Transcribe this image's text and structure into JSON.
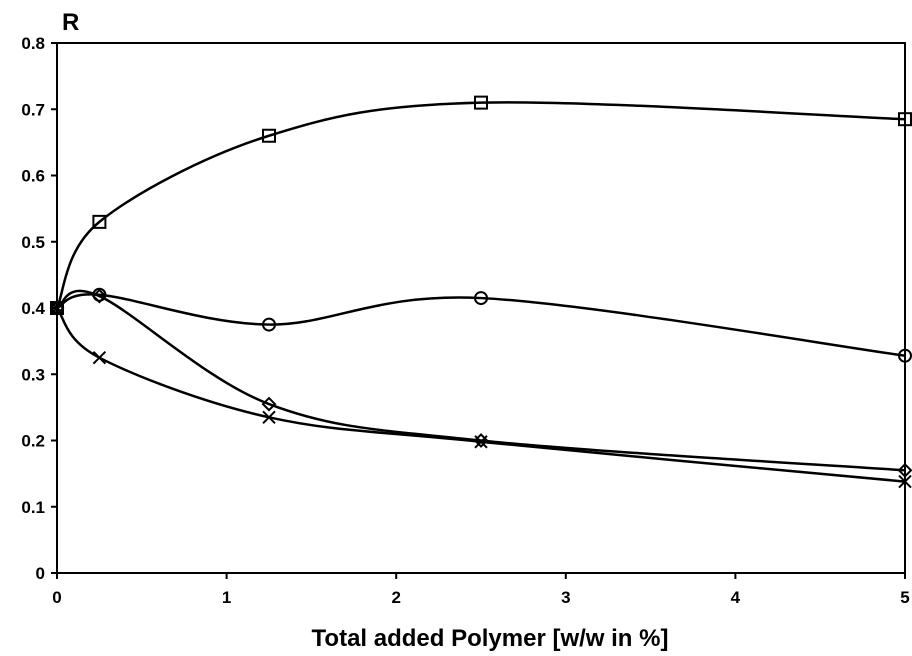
{
  "chart_data": {
    "type": "line",
    "y_label": "R",
    "x_label": "Total added Polymer  [w/w in %]",
    "x": [
      0,
      0.25,
      1.25,
      2.5,
      5
    ],
    "series": [
      {
        "color": "#000000",
        "marker": "square",
        "values": [
          0.4,
          0.53,
          0.66,
          0.71,
          0.685
        ]
      },
      {
        "color": "#000000",
        "marker": "circle",
        "values": [
          0.4,
          0.42,
          0.375,
          0.415,
          0.328
        ]
      },
      {
        "color": "#000000",
        "marker": "diamond",
        "values": [
          0.4,
          0.418,
          0.255,
          0.2,
          0.155
        ]
      },
      {
        "color": "#000000",
        "marker": "x",
        "values": [
          0.4,
          0.325,
          0.235,
          0.198,
          0.138
        ]
      }
    ],
    "xlim": [
      0,
      5
    ],
    "xticks": [
      0,
      1,
      2,
      3,
      4,
      5
    ],
    "ylim": [
      0,
      0.8
    ],
    "yticks": [
      0,
      0.1,
      0.2,
      0.3,
      0.4,
      0.5,
      0.6,
      0.7,
      0.8
    ],
    "grid": false
  }
}
